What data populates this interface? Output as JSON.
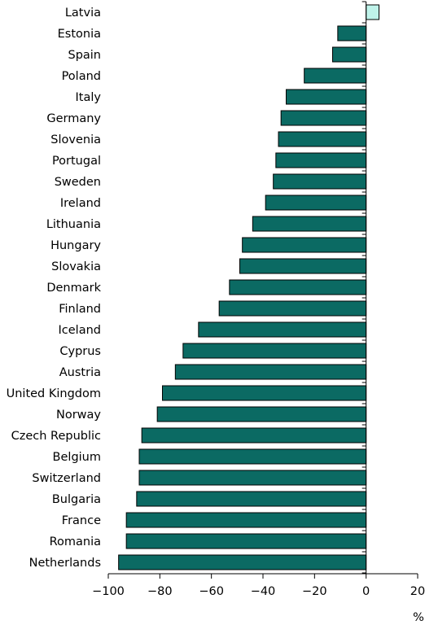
{
  "chart_data": {
    "type": "bar",
    "orientation": "horizontal",
    "categories": [
      "Latvia",
      "Estonia",
      "Spain",
      "Poland",
      "Italy",
      "Germany",
      "Slovenia",
      "Portugal",
      "Sweden",
      "Ireland",
      "Lithuania",
      "Hungary",
      "Slovakia",
      "Denmark",
      "Finland",
      "Iceland",
      "Cyprus",
      "Austria",
      "United Kingdom",
      "Norway",
      "Czech Republic",
      "Belgium",
      "Switzerland",
      "Bulgaria",
      "France",
      "Romania",
      "Netherlands"
    ],
    "values": [
      5,
      -11,
      -13,
      -24,
      -31,
      -33,
      -34,
      -35,
      -36,
      -39,
      -44,
      -48,
      -49,
      -53,
      -57,
      -65,
      -71,
      -74,
      -79,
      -81,
      -87,
      -88,
      -88,
      -89,
      -93,
      -93,
      -96
    ],
    "xlim": [
      -100,
      20
    ],
    "xticks": [
      -100,
      -80,
      -60,
      -40,
      -20,
      0,
      20
    ],
    "xtick_labels": [
      "−100",
      "−80",
      "−60",
      "−40",
      "−20",
      "0",
      "20"
    ],
    "unit_label": "%",
    "colors": {
      "negative": "#0b6a63",
      "positive": "#bff3ea",
      "stroke": "#000000"
    }
  }
}
